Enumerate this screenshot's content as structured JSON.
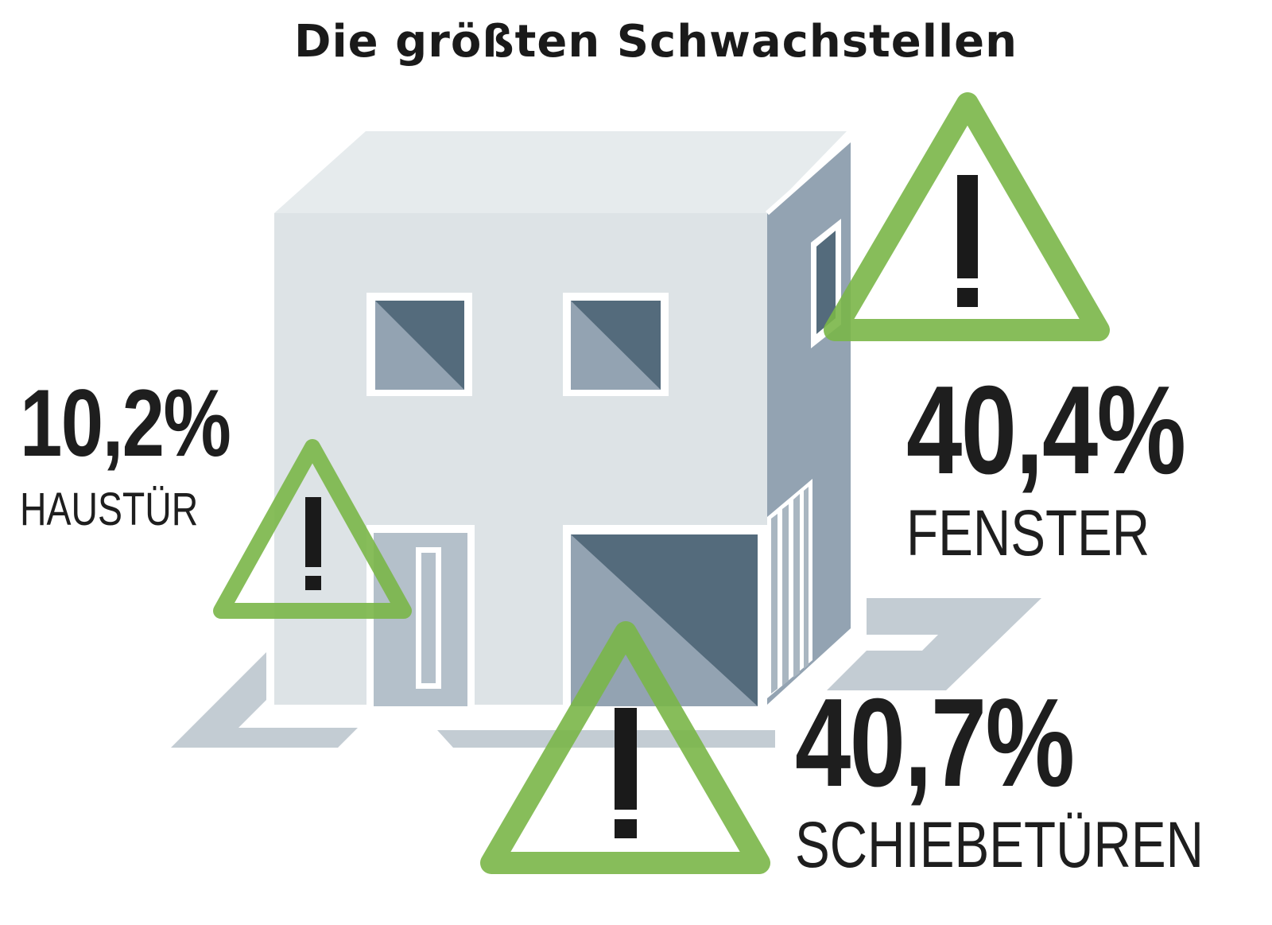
{
  "title": "Die größten Schwachstellen",
  "colors": {
    "warning_green": "#7ab648",
    "facade_light": "#dde3e6",
    "facade_side": "#93a3b2",
    "window_dark": "#546b7c",
    "ground": "#c3ccd3"
  },
  "icons": [
    "warning-triangle-icon",
    "house-illustration"
  ],
  "weak_points": [
    {
      "value": "10,2%",
      "label": "HAUSTÜR"
    },
    {
      "value": "40,4%",
      "label": "FENSTER"
    },
    {
      "value": "40,7%",
      "label": "SCHIEBETÜREN"
    }
  ]
}
